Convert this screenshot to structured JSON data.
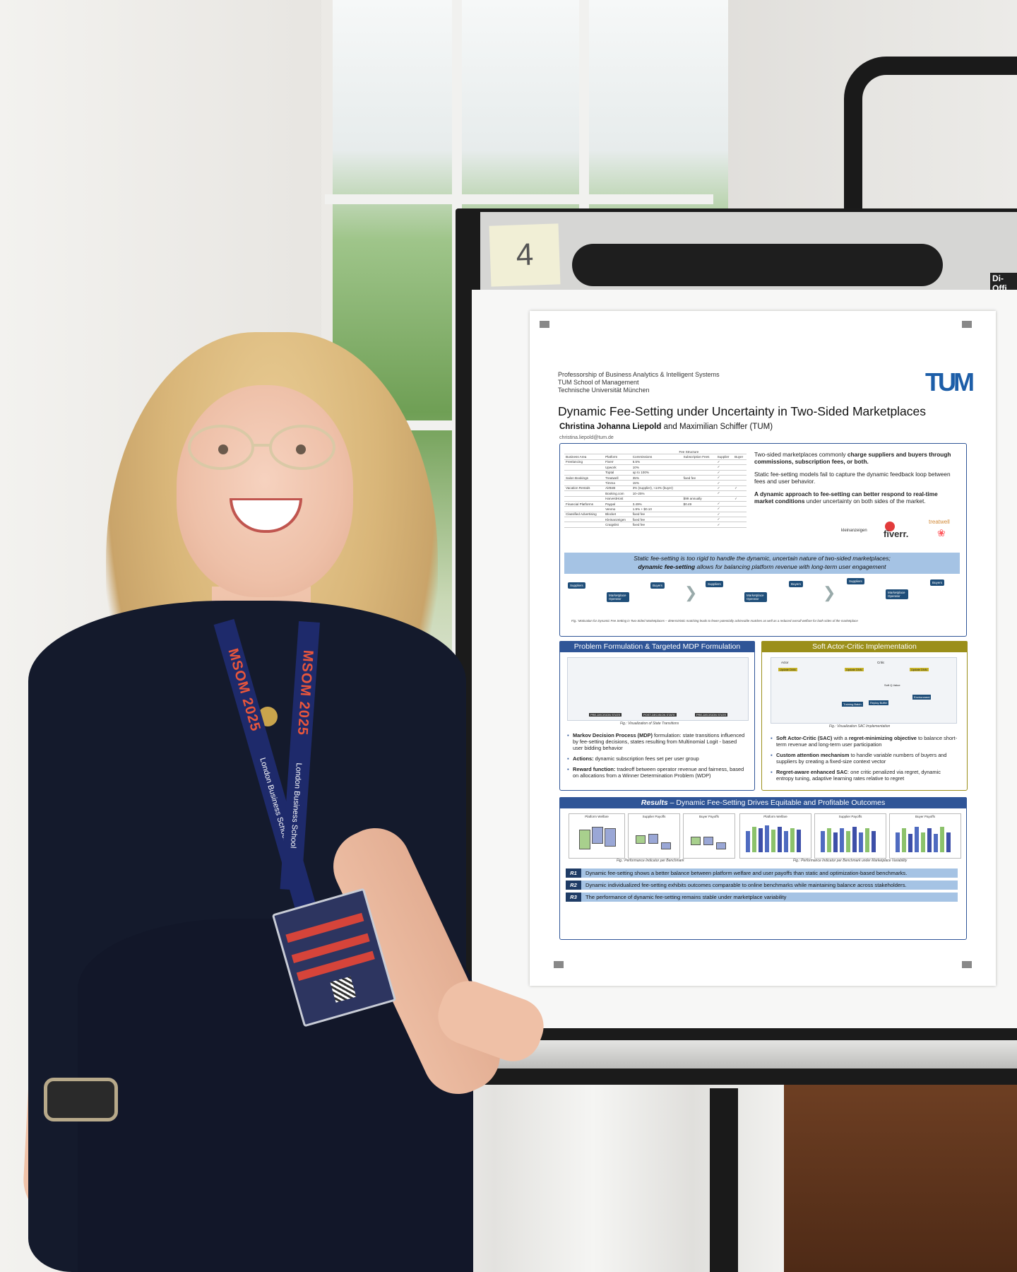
{
  "easel": {
    "note_number": "4",
    "brand": "Di-Offi"
  },
  "poster": {
    "institution_lines": [
      "Professorship of Business Analytics & Intelligent Systems",
      "TUM School of Management",
      "Technische Universität München"
    ],
    "logo": "TUM",
    "title": "Dynamic Fee-Setting under Uncertainty in Two-Sided Marketplaces",
    "authors_main": "Christina Johanna Liepold",
    "authors_rest": " and Maximilian Schiffer (TUM)",
    "email": "christina.liepold@tum.de",
    "fee_table": {
      "headers": [
        "Business Area",
        "Platform",
        "Commissions",
        "Subscription Fees",
        "Supplier",
        "Buyer"
      ],
      "super_header": "Fee Structure",
      "rows": [
        [
          "Freelancing",
          "Fiverr",
          "5.5%",
          "",
          "✓",
          ""
        ],
        [
          "",
          "Upwork",
          "10%",
          "",
          "✓",
          ""
        ],
        [
          "",
          "Toptal",
          "up to 100%",
          "",
          "✓",
          ""
        ],
        [
          "Salon Bookings",
          "Treatwell",
          "35%",
          "fixed fee",
          "✓",
          ""
        ],
        [
          "",
          "Timma",
          "15%",
          "",
          "✓",
          ""
        ],
        [
          "Vacation Rentals",
          "AirBnB",
          "3% (supplier), ≈14% (buyer)",
          "",
          "✓",
          "✓"
        ],
        [
          "",
          "Booking.com",
          "10–25%",
          "",
          "✓",
          ""
        ],
        [
          "",
          "HarvestHost",
          "",
          "$99 annually",
          "",
          "✓"
        ],
        [
          "Financial Platforms",
          "Paypal",
          "3.49%",
          "$0.49",
          "✓",
          ""
        ],
        [
          "",
          "Venmo",
          "1.9% + $0.10",
          "",
          "✓",
          ""
        ],
        [
          "Classified Advertising",
          "Blocket",
          "fixed fee",
          "",
          "✓",
          ""
        ],
        [
          "",
          "Kleinanzeigen",
          "fixed fee",
          "",
          "✓",
          ""
        ],
        [
          "",
          "Craigslist",
          "fixed fee",
          "",
          "✓",
          ""
        ]
      ]
    },
    "motivation": {
      "p1_a": "Two-sided marketplaces commonly ",
      "p1_b": "charge suppliers and buyers through commissions, subscription fees, or both.",
      "p2": "Static fee-setting models fail to capture the dynamic feedback loop between fees and user behavior.",
      "p3_a": "A dynamic approach to fee-setting can better respond to real-time market conditions",
      "p3_b": " under uncertainty on both sides of the market.",
      "logos": [
        "kleinanzeigen",
        "fiverr.",
        "treatwell"
      ]
    },
    "band_line1": "Static fee-setting is too rigid to handle the dynamic, uncertain nature of two-sided marketplaces;",
    "band_line2_a": "dynamic fee-setting",
    "band_line2_b": " allows for balancing platform revenue with long-term user engagement",
    "flow_nodes": [
      "Suppliers",
      "Marketplace Operator",
      "Buyers",
      "Suppliers",
      "Marketplace Operator",
      "Buyers",
      "Suppliers",
      "Marketplace Operator",
      "Buyers"
    ],
    "motivation_caption": "Fig.: Motivation for Dynamic Fee Setting in Two-Sided Marketplaces – deterministic matching leads to fewer potentially achievable matches as well as a reduced overall welfare for both sides of the marketplace",
    "mdp": {
      "heading": "Problem Formulation & Targeted MDP Formulation",
      "caption": "Fig.: Visualization of State Transitions",
      "states": [
        "PRE-DECISION STATE",
        "POST-DECISION STATE",
        "PRE-DECISION STATE"
      ],
      "b1_a": "Markov Decision Process (MDP)",
      "b1_b": " formulation: state transitions influenced by fee-setting decisions, states resulting from Multinomial Logit - based user bidding behavior",
      "b2_a": "Actions:",
      "b2_b": " dynamic subscription fees set per user group",
      "b3_a": "Reward function:",
      "b3_b": " tradeoff between operator revenue and fairness, based on allocations from a Winner Determination Problem (WDP)"
    },
    "sac": {
      "heading": "Soft Actor-Critic Implementation",
      "caption": "Fig.: Visualization SAC Implementation",
      "diagram_labels": [
        "Actor",
        "Critic",
        "Update DNN",
        "Update DNN",
        "Update DNN",
        "Training Batch",
        "Replay Buffer",
        "Environment",
        "Soft Q-Value"
      ],
      "b1_a": "Soft Actor-Critic (SAC)",
      "b1_b": " with a ",
      "b1_c": "regret-minimizing objective",
      "b1_d": " to balance short-term revenue and long-term user participation",
      "b2_a": "Custom attention mechanism",
      "b2_b": " to handle variable numbers of buyers and suppliers by creating a fixed-size context vector",
      "b3_a": "Regret-aware enhanced SAC",
      "b3_b": ": one critic penalized via regret, dynamic entropy tuning, adaptive learning rates relative to regret"
    },
    "results": {
      "heading_a": "Results",
      "heading_b": " – Dynamic Fee-Setting Drives Equitable and Profitable Outcomes",
      "box_titles": [
        "Platform Welfare",
        "Supplier Payoffs",
        "Buyer Payoffs"
      ],
      "bar_titles": [
        "Platform Welfare",
        "Supplier Payoffs",
        "Buyer Payoffs"
      ],
      "caption_left": "Fig.: Performance Indicator per Benchmark",
      "caption_right": "Fig.: Performance Indicator per Benchmark under Marketplace Variability",
      "rows": [
        {
          "tag": "R1",
          "text": "Dynamic fee-setting shows a better balance between platform welfare and user payoffs than static and optimization-based benchmarks."
        },
        {
          "tag": "R2",
          "text": "Dynamic individualized fee-setting exhibits  outcomes comparable to online benchmarks while maintaining balance across stakeholders."
        },
        {
          "tag": "R3",
          "text": "The performance of dynamic fee-setting remains stable under marketplace variability"
        }
      ]
    }
  },
  "lanyard": {
    "left_text": "MSOM 2025",
    "right_text": "MSOM 2025",
    "school": "London Business School"
  },
  "colors": {
    "poster_blue": "#2f5597",
    "sac_olive": "#9b8f1a",
    "band_blue": "#a5c3e4",
    "lanyard_navy": "#1e2a6b",
    "lanyard_orange": "#e8563c"
  }
}
